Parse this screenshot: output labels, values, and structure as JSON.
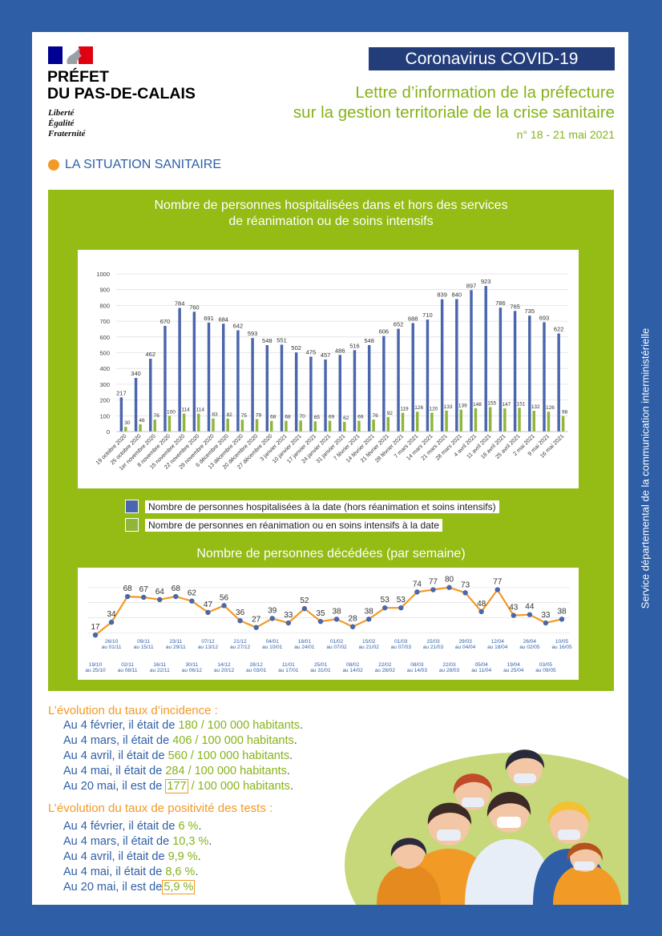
{
  "header": {
    "prefet_line1": "PRÉFET",
    "prefet_line2": "DU PAS-DE-CALAIS",
    "devise": [
      "Liberté",
      "Égalité",
      "Fraternité"
    ],
    "banner": "Coronavirus COVID-19",
    "subtitle_line1": "Lettre d’information de la préfecture",
    "subtitle_line2": "sur la gestion territoriale de la crise sanitaire",
    "issue": "n° 18 - 21 mai 2021"
  },
  "section_title": "LA SITUATION SANITAIRE",
  "side_text": "Service départemental de la communication interministérielle",
  "colors": {
    "navy": "#223d7a",
    "blue": "#2e5ea6",
    "green": "#95bb15",
    "orange": "#f29a26",
    "bar_blue": "#4a66ac",
    "bar_green": "#8fb63a"
  },
  "chart_titles": {
    "hospital_line1": "Nombre de personnes hospitalisées dans et hors des services",
    "hospital_line2": "de réanimation ou de soins intensifs",
    "deaths": "Nombre de personnes décédées (par semaine)"
  },
  "legend": {
    "hospital": "Nombre de personnes hospitalisées à la date (hors réanimation et soins intensifs)",
    "icu": "Nombre de personnes en réanimation ou en soins intensifs à la date"
  },
  "chart_data": [
    {
      "type": "bar",
      "title": "Nombre de personnes hospitalisées dans et hors des services de réanimation ou de soins intensifs",
      "categories": [
        "19 octobre 2020",
        "25 octobre 2020",
        "1er novembre 2020",
        "8 novembre 2020",
        "15 novembre 2020",
        "22 novembre 2020",
        "29 novembre 2020",
        "6 décembre 2020",
        "13 décembre 2020",
        "20 décembre 2020",
        "27 décembre 2020",
        "3 janvier 2021",
        "10 janvier 2021",
        "17 janvier 2021",
        "24 janvier 2021",
        "31 janvier 2021",
        "7 février 2021",
        "14 février 2021",
        "21 février 2021",
        "28 février 2021",
        "7 mars 2021",
        "14 mars 2021",
        "21 mars 2021",
        "28 mars 2021",
        "4 avril 2021",
        "11 avril 2021",
        "18 avril 2021",
        "25 avril 2021",
        "2 mai 2021",
        "9 mai 2021",
        "16 mai 2021"
      ],
      "ylim": [
        0,
        1000
      ],
      "yticks": [
        0,
        100,
        200,
        300,
        400,
        500,
        600,
        700,
        800,
        900,
        1000
      ],
      "legend_position": "bottom",
      "series": [
        {
          "name": "Nombre de personnes hospitalisées à la date (hors réanimation et soins intensifs)",
          "values": [
            217,
            340,
            462,
            670,
            784,
            760,
            691,
            684,
            642,
            593,
            548,
            551,
            502,
            475,
            457,
            486,
            516,
            548,
            606,
            652,
            688,
            710,
            839,
            840,
            897,
            923,
            786,
            765,
            735,
            693,
            622
          ]
        },
        {
          "name": "Nombre de personnes en réanimation ou en soins intensifs à la date",
          "values": [
            30,
            46,
            76,
            100,
            114,
            114,
            83,
            82,
            75,
            79,
            68,
            68,
            70,
            65,
            69,
            62,
            69,
            76,
            92,
            119,
            126,
            120,
            133,
            139,
            148,
            155,
            147,
            151,
            132,
            126,
            98
          ]
        }
      ]
    },
    {
      "type": "line",
      "title": "Nombre de personnes décédées (par semaine)",
      "x": [
        "19/10 au 25/10",
        "26/10 au 01/11",
        "02/11 au 08/11",
        "09/11 au 15/11",
        "16/11 au 22/11",
        "23/11 au 29/11",
        "30/11 au 06/12",
        "07/12 au 13/12",
        "14/12 au 20/12",
        "21/12 au 27/12",
        "28/12 au 03/01",
        "04/01 au 10/01",
        "11/01 au 17/01",
        "18/01 au 24/01",
        "25/01 au 31/01",
        "01/02 au 07/02",
        "08/02 au 14/02",
        "15/02 au 21/02",
        "22/02 au 28/02",
        "01/03 au 07/03",
        "08/03 au 14/03",
        "15/03 au 21/03",
        "22/03 au 28/03",
        "29/03 au 04/04",
        "05/04 au 11/04",
        "12/04 au 18/04",
        "19/04 au 25/04",
        "26/04 au 02/05",
        "03/05 au 09/05",
        "10/05 au 16/05"
      ],
      "x_labels_top": [
        {
          "a": "26/10",
          "b": "au 01/11"
        },
        {
          "a": "09/11",
          "b": "au 15/11"
        },
        {
          "a": "23/11",
          "b": "au 29/11"
        },
        {
          "a": "07/12",
          "b": "au 13/12"
        },
        {
          "a": "21/12",
          "b": "au 27/12"
        },
        {
          "a": "04/01",
          "b": "au 10/01"
        },
        {
          "a": "18/01",
          "b": "au 24/01"
        },
        {
          "a": "01/02",
          "b": "au 07/02"
        },
        {
          "a": "15/02",
          "b": "au 21/02"
        },
        {
          "a": "01/03",
          "b": "au 07/03"
        },
        {
          "a": "15/03",
          "b": "au 21/03"
        },
        {
          "a": "29/03",
          "b": "au 04/04"
        },
        {
          "a": "12/04",
          "b": "au 18/04"
        },
        {
          "a": "26/04",
          "b": "au 02/05"
        },
        {
          "a": "10/05",
          "b": "au 16/05"
        }
      ],
      "x_labels_bottom": [
        {
          "a": "19/10",
          "b": "au 25/10"
        },
        {
          "a": "02/11",
          "b": "au 08/11"
        },
        {
          "a": "16/11",
          "b": "au 22/11"
        },
        {
          "a": "30/11",
          "b": "au 06/12"
        },
        {
          "a": "14/12",
          "b": "au 20/12"
        },
        {
          "a": "28/12",
          "b": "au 03/01"
        },
        {
          "a": "11/01",
          "b": "au 17/01"
        },
        {
          "a": "25/01",
          "b": "au 31/01"
        },
        {
          "a": "08/02",
          "b": "au 14/02"
        },
        {
          "a": "22/02",
          "b": "au 28/02"
        },
        {
          "a": "08/03",
          "b": "au 14/03"
        },
        {
          "a": "22/03",
          "b": "au 28/03"
        },
        {
          "a": "05/04",
          "b": "au 11/04"
        },
        {
          "a": "19/04",
          "b": "au 25/04"
        },
        {
          "a": "03/05",
          "b": "au 09/05"
        }
      ],
      "values": [
        17,
        34,
        68,
        67,
        64,
        68,
        62,
        47,
        56,
        36,
        27,
        39,
        33,
        52,
        35,
        38,
        28,
        38,
        53,
        53,
        74,
        77,
        80,
        73,
        48,
        77,
        43,
        44,
        33,
        38
      ],
      "grid": true
    }
  ],
  "incidence": {
    "title": "L’évolution du taux d’incidence :",
    "rows": [
      {
        "prefix": "Au 4 février, il était de ",
        "value": "180 / 100 000 habitants",
        "suffix": "."
      },
      {
        "prefix": "Au 4 mars, il était de ",
        "value": "406 / 100 000 habitants",
        "suffix": "."
      },
      {
        "prefix": "Au 4 avril, il était de ",
        "value": "560 / 100 000 habitants",
        "suffix": "."
      },
      {
        "prefix": "Au 4 mai, il était de ",
        "value": "284 / 100 000 habitants",
        "suffix": "."
      }
    ],
    "last_prefix": "Au 20 mai, il est de ",
    "last_boxed": "177",
    "last_rest": " / 100 000 habitants",
    "last_suffix": "."
  },
  "positivity": {
    "title": "L’évolution du taux de positivité des tests :",
    "rows": [
      {
        "prefix": "Au 4 février, il était de ",
        "value": "6 %",
        "suffix": "."
      },
      {
        "prefix": "Au 4 mars, il était de ",
        "value": "10,3 %",
        "suffix": "."
      },
      {
        "prefix": "Au 4 avril, il était de ",
        "value": "9,9 %",
        "suffix": "."
      },
      {
        "prefix": "Au 4 mai, il était de ",
        "value": "8,6 %",
        "suffix": "."
      }
    ],
    "last_prefix": "Au 20 mai, il est de",
    "last_boxed": "5,9 %"
  }
}
